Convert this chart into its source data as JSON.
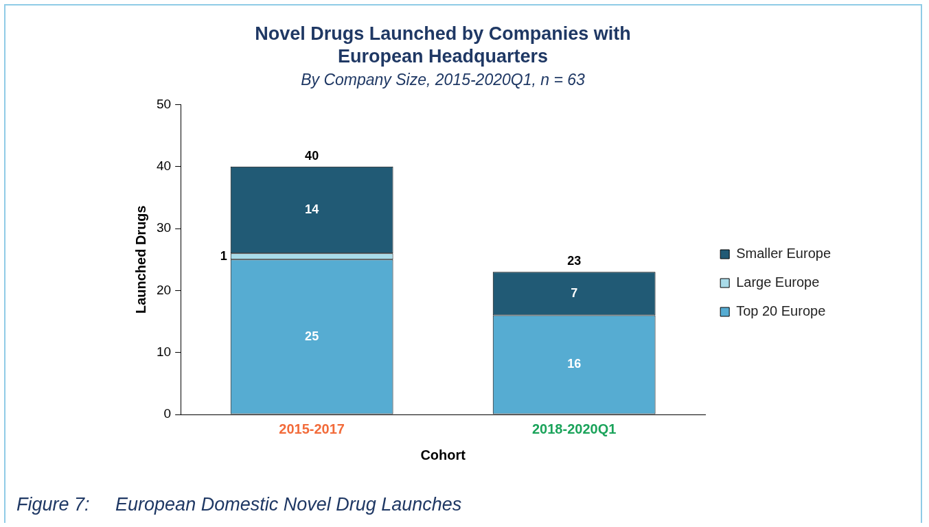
{
  "chart_data": {
    "type": "bar",
    "title": "Novel Drugs Launched by Companies with European Headquarters",
    "subtitle": "By Company Size, 2015-2020Q1, n = 63",
    "xlabel": "Cohort",
    "ylabel": "Launched Drugs",
    "categories": [
      "2015-2017",
      "2018-2020Q1"
    ],
    "series": [
      {
        "name": "Top 20 Europe",
        "color": "#56acd2",
        "values": [
          25,
          16
        ]
      },
      {
        "name": "Large Europe",
        "color": "#a9dbe9",
        "values": [
          1,
          null
        ]
      },
      {
        "name": "Smaller Europe",
        "color": "#215a75",
        "values": [
          14,
          7
        ]
      }
    ],
    "stacked": true,
    "ylim": [
      0,
      50
    ],
    "yticks": [
      0,
      10,
      20,
      30,
      40,
      50
    ],
    "grid": false,
    "legend": "right",
    "data_labels": true,
    "totals": [
      "40",
      "23"
    ],
    "annotations": [
      "Figure 7:     European Domestic Novel Drug Launches"
    ]
  }
}
